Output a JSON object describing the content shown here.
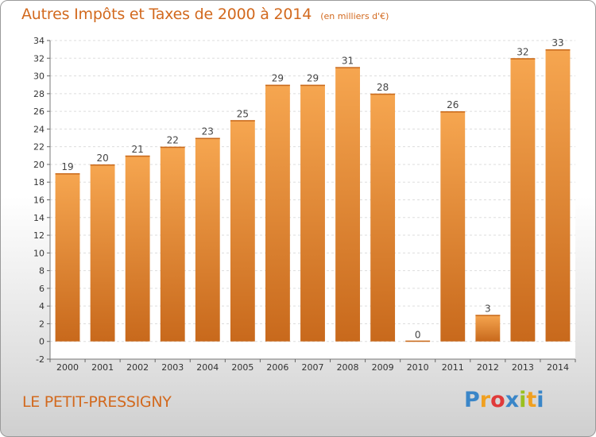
{
  "chart_data": {
    "type": "bar",
    "title": "Autres Impôts et Taxes de 2000 à 2014",
    "unit_note": "(en milliers d'€)",
    "categories": [
      "2000",
      "2001",
      "2002",
      "2003",
      "2004",
      "2005",
      "2006",
      "2007",
      "2008",
      "2009",
      "2010",
      "2011",
      "2012",
      "2013",
      "2014"
    ],
    "values": [
      19,
      20,
      21,
      22,
      23,
      25,
      29,
      29,
      31,
      28,
      0,
      26,
      3,
      32,
      33
    ],
    "ylim": [
      -2,
      34
    ],
    "yticks": [
      "-2",
      "0",
      "2",
      "4",
      "6",
      "8",
      "10",
      "12",
      "14",
      "16",
      "18",
      "20",
      "22",
      "24",
      "26",
      "28",
      "30",
      "32",
      "34"
    ],
    "grid": true,
    "bar_color": "#f0943c"
  },
  "footer": {
    "town": "LE PETIT-PRESSIGNY",
    "logo_letters": [
      "P",
      "r",
      "o",
      "x",
      "i",
      "t",
      "i"
    ],
    "logo_colors": [
      "#3a86c8",
      "#f0a020",
      "#e03a3a",
      "#3a86c8",
      "#9ac020",
      "#f0a020",
      "#3a86c8"
    ]
  }
}
